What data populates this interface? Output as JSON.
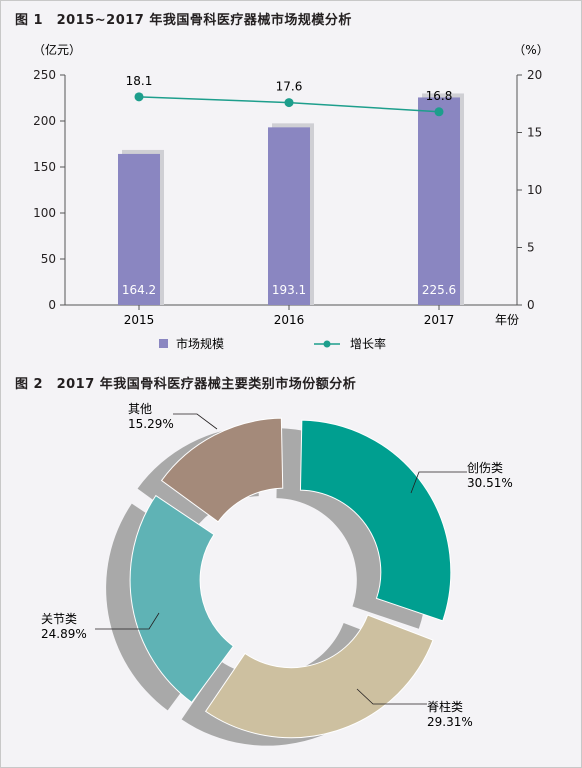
{
  "colors": {
    "bar": "#8a86c1",
    "line": "#1d9e8c",
    "donut": [
      "#009f90",
      "#cdc0a0",
      "#5fb3b5",
      "#a48a7a"
    ],
    "donut_shadow": "#a9a9a9"
  },
  "chart_data": [
    {
      "type": "bar",
      "title": "图 1　2015~2017 年我国骨科医疗器械市场规模分析",
      "categories": [
        "2015",
        "2016",
        "2017"
      ],
      "xlabel": "年份",
      "ylabel_left": "（亿元）",
      "ylabel_right": "（%）",
      "ylim_left": [
        0,
        250
      ],
      "ylim_right": [
        0,
        20
      ],
      "yticks_left": [
        "0",
        "50",
        "100",
        "150",
        "200",
        "250"
      ],
      "yticks_right": [
        "0",
        "5",
        "10",
        "15",
        "20"
      ],
      "series": [
        {
          "name": "市场规模",
          "type": "bar",
          "axis": "left",
          "values": [
            164.2,
            193.1,
            225.6
          ],
          "labels": [
            "164.2",
            "193.1",
            "225.6"
          ]
        },
        {
          "name": "增长率",
          "type": "line",
          "axis": "right",
          "values": [
            18.1,
            17.6,
            16.8
          ],
          "labels": [
            "18.1",
            "17.6",
            "16.8"
          ]
        }
      ],
      "legend": "bottom"
    },
    {
      "type": "pie",
      "title": "图 2　2017 年我国骨科医疗器械主要类别市场份额分析",
      "slices": [
        {
          "name": "创伤类",
          "value": 30.51,
          "label": "30.51%"
        },
        {
          "name": "脊柱类",
          "value": 29.31,
          "label": "29.31%"
        },
        {
          "name": "关节类",
          "value": 24.89,
          "label": "24.89%"
        },
        {
          "name": "其他",
          "value": 15.29,
          "label": "15.29%"
        }
      ]
    }
  ]
}
